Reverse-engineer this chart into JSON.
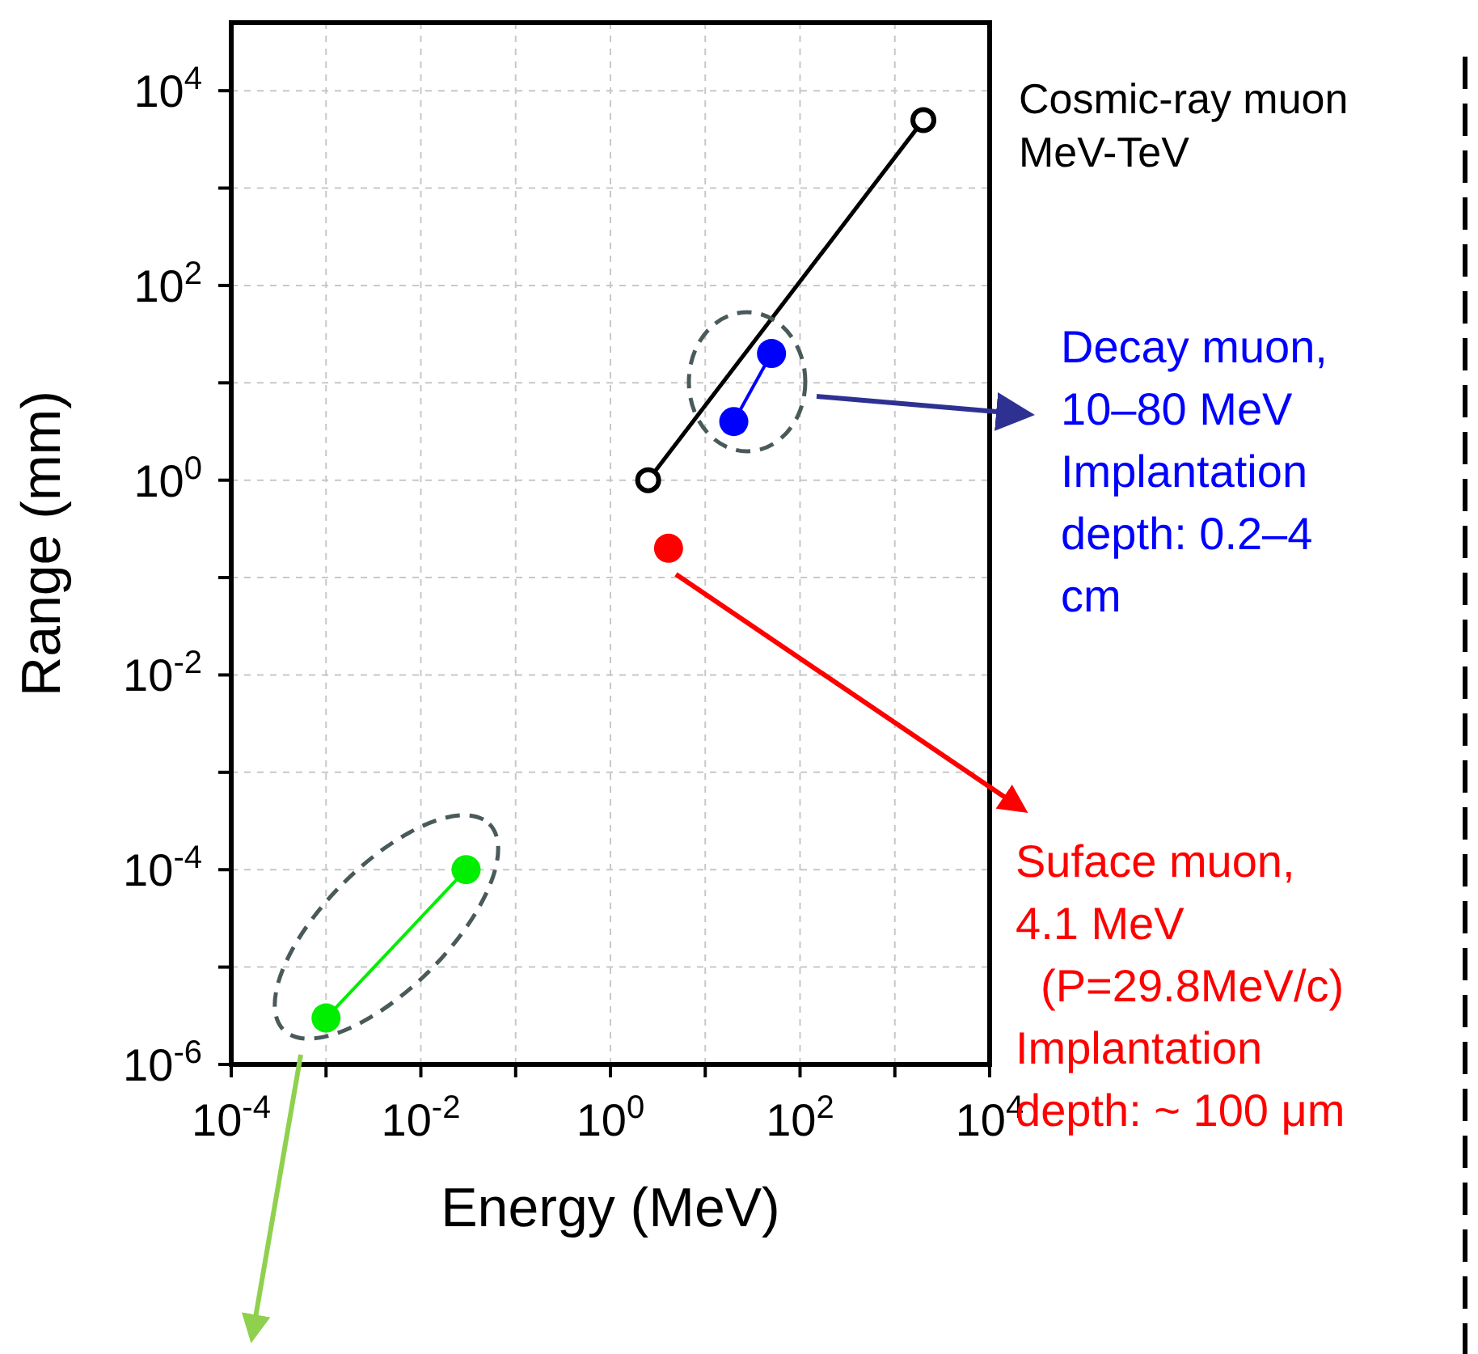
{
  "chart_data": {
    "type": "scatter",
    "xlabel": "Energy (MeV)",
    "ylabel": "Range (mm)",
    "log": "xy",
    "grid": true,
    "legend": false,
    "marker": "circle",
    "line_style": "solid",
    "xlim": [
      0.0001,
      10000
    ],
    "xticks": [
      {
        "value": 0.0001,
        "label": "10$^{-4}$"
      },
      {
        "value": 0.001,
        "label": null
      },
      {
        "value": 0.01,
        "label": "10$^{-2}$"
      },
      {
        "value": 0.1,
        "label": null
      },
      {
        "value": 1,
        "label": "10$^{0}$"
      },
      {
        "value": 10,
        "label": null
      },
      {
        "value": 100,
        "label": "10$^{2}$"
      },
      {
        "value": 1000,
        "label": null
      },
      {
        "value": 10000,
        "label": "10$^{4}$"
      }
    ],
    "ylim": [
      1e-06,
      50000
    ],
    "yticks": [
      {
        "value": 1e-06,
        "label": "10$^{-6}$"
      },
      {
        "value": 1e-05,
        "label": null
      },
      {
        "value": 0.0001,
        "label": "10$^{-4}$"
      },
      {
        "value": 0.001,
        "label": null
      },
      {
        "value": 0.01,
        "label": "10$^{-2}$"
      },
      {
        "value": 0.1,
        "label": null
      },
      {
        "value": 1,
        "label": "10$^{0}$"
      },
      {
        "value": 10,
        "label": null
      },
      {
        "value": 100,
        "label": "10$^{2}$"
      },
      {
        "value": 1000,
        "label": null
      },
      {
        "value": 10000,
        "label": "10$^{4}$"
      }
    ],
    "series": [
      {
        "type": "line",
        "color": "#00ee00",
        "x": [
          0.001,
          0.03
        ],
        "values": [
          3e-06,
          0.0001
        ]
      },
      {
        "color": "#ff0000",
        "x": [
          4.1
        ],
        "values": [
          0.2
        ]
      },
      {
        "type": "line",
        "color": "#0000ff",
        "x": [
          20,
          50
        ],
        "values": [
          4,
          20
        ]
      },
      {
        "type": "line",
        "color": "#000000",
        "x": [
          2.5,
          2000
        ],
        "values": [
          1,
          5000
        ]
      }
    ],
    "annotations": [
      "Cosmic-ray muon\nMeV-TeV",
      "Decay muon,\n10–80 MeV\nImplantation\ndepth: 0.2–4\ncm",
      "Suface muon,\n4.1 MeV\n  (P=29.8MeV/c)\nImplantation\ndepth: ~ 100 μm"
    ]
  }
}
